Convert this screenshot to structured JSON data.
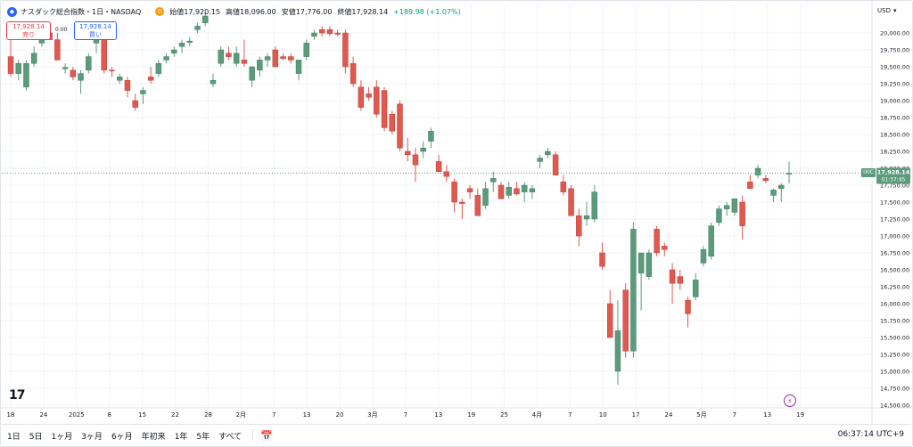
{
  "header": {
    "logo": "◆",
    "symbol": "ナスダック総合指数・1日・NASDAQ",
    "badge": "D",
    "open": "始値17,920.15",
    "high": "高値18,096.00",
    "low": "安値17,776.00",
    "close": "終値17,928.14",
    "change": "+189.98 (+1.07%)"
  },
  "trade": {
    "sell_price": "17,928.14",
    "sell_label": "売り",
    "spread": "0.00",
    "buy_price": "17,928.14",
    "buy_label": "買い"
  },
  "currency": "USD",
  "price_tag": {
    "label": "IXIC",
    "price": "17,928.14",
    "countdown": "01:37:45"
  },
  "toolbar": {
    "ranges": [
      "1日",
      "5日",
      "1ヶ月",
      "3ヶ月",
      "6ヶ月",
      "年初来",
      "1年",
      "5年",
      "すべて"
    ],
    "clock": "06:37:14 UTC+9"
  },
  "colors": {
    "up": "#5b9b7b",
    "down": "#e0594f",
    "grid": "#f0f3fa"
  },
  "chart_data": {
    "type": "candlestick",
    "y_ticks": [
      14500,
      14750,
      15000,
      15250,
      15500,
      15750,
      16000,
      16250,
      16500,
      16750,
      17000,
      17250,
      17500,
      17750,
      18000,
      18250,
      18500,
      18750,
      19000,
      19250,
      19500,
      19750,
      20000
    ],
    "y_tick_labels": [
      "14,500.00",
      "14,750.00",
      "15,000.00",
      "15,250.00",
      "15,500.00",
      "15,750.00",
      "16,000.00",
      "16,250.00",
      "16,500.00",
      "16,750.00",
      "17,000.00",
      "17,250.00",
      "17,500.00",
      "17,750.00",
      "18,000.00",
      "18,250.00",
      "18,500.00",
      "18,750.00",
      "19,000.00",
      "19,250.00",
      "19,500.00",
      "19,750.00",
      "20,000.00"
    ],
    "ylim": [
      14450,
      20250
    ],
    "x_labels": [
      "18",
      "24",
      "2025",
      "8",
      "15",
      "22",
      "28",
      "2月",
      "7",
      "13",
      "20",
      "3月",
      "7",
      "13",
      "19",
      "25",
      "4月",
      "7",
      "10",
      "17",
      "24",
      "5月",
      "7",
      "13",
      "19"
    ],
    "candles": [
      {
        "o": 19650,
        "h": 19950,
        "l": 19350,
        "c": 19400
      },
      {
        "o": 19400,
        "h": 19600,
        "l": 19300,
        "c": 19550
      },
      {
        "o": 19200,
        "h": 19600,
        "l": 19150,
        "c": 19550
      },
      {
        "o": 19550,
        "h": 19800,
        "l": 19500,
        "c": 19700
      },
      {
        "o": 19850,
        "h": 20000,
        "l": 19800,
        "c": 19950
      },
      {
        "o": 20000,
        "h": 20150,
        "l": 19900,
        "c": 19900
      },
      {
        "o": 19900,
        "h": 20000,
        "l": 19600,
        "c": 19600
      },
      {
        "o": 19470,
        "h": 19550,
        "l": 19400,
        "c": 19490
      },
      {
        "o": 19450,
        "h": 19500,
        "l": 19300,
        "c": 19350
      },
      {
        "o": 19300,
        "h": 19450,
        "l": 19100,
        "c": 19400
      },
      {
        "o": 19450,
        "h": 19700,
        "l": 19400,
        "c": 19650
      },
      {
        "o": 19850,
        "h": 20000,
        "l": 19700,
        "c": 19950
      },
      {
        "o": 19900,
        "h": 19950,
        "l": 19400,
        "c": 19450
      },
      {
        "o": 19450,
        "h": 19500,
        "l": 19350,
        "c": 19440
      },
      {
        "o": 19300,
        "h": 19400,
        "l": 19250,
        "c": 19350
      },
      {
        "o": 19300,
        "h": 19350,
        "l": 19050,
        "c": 19150
      },
      {
        "o": 19000,
        "h": 19100,
        "l": 18850,
        "c": 18900
      },
      {
        "o": 19100,
        "h": 19200,
        "l": 18950,
        "c": 19150
      },
      {
        "o": 19350,
        "h": 19500,
        "l": 19250,
        "c": 19300
      },
      {
        "o": 19400,
        "h": 19600,
        "l": 19350,
        "c": 19550
      },
      {
        "o": 19600,
        "h": 19700,
        "l": 19550,
        "c": 19650
      },
      {
        "o": 19700,
        "h": 19800,
        "l": 19650,
        "c": 19750
      },
      {
        "o": 19800,
        "h": 19900,
        "l": 19700,
        "c": 19850
      },
      {
        "o": 19860,
        "h": 19940,
        "l": 19800,
        "c": 19880
      },
      {
        "o": 20050,
        "h": 20150,
        "l": 20000,
        "c": 20100
      },
      {
        "o": 20150,
        "h": 20300,
        "l": 20100,
        "c": 20250
      },
      {
        "o": 19250,
        "h": 19400,
        "l": 19200,
        "c": 19300
      },
      {
        "o": 19550,
        "h": 19800,
        "l": 19500,
        "c": 19750
      },
      {
        "o": 19700,
        "h": 19800,
        "l": 19600,
        "c": 19650
      },
      {
        "o": 19550,
        "h": 19800,
        "l": 19500,
        "c": 19700
      },
      {
        "o": 19600,
        "h": 19900,
        "l": 19500,
        "c": 19550
      },
      {
        "o": 19300,
        "h": 19500,
        "l": 19200,
        "c": 19500
      },
      {
        "o": 19450,
        "h": 19650,
        "l": 19350,
        "c": 19600
      },
      {
        "o": 19600,
        "h": 19700,
        "l": 19500,
        "c": 19650
      },
      {
        "o": 19750,
        "h": 19800,
        "l": 19500,
        "c": 19500
      },
      {
        "o": 19650,
        "h": 19700,
        "l": 19600,
        "c": 19620
      },
      {
        "o": 19650,
        "h": 19700,
        "l": 19550,
        "c": 19600
      },
      {
        "o": 19400,
        "h": 19600,
        "l": 19300,
        "c": 19600
      },
      {
        "o": 19650,
        "h": 19900,
        "l": 19600,
        "c": 19850
      },
      {
        "o": 19950,
        "h": 20050,
        "l": 19900,
        "c": 20000
      },
      {
        "o": 20050,
        "h": 20100,
        "l": 19950,
        "c": 20000
      },
      {
        "o": 20050,
        "h": 20100,
        "l": 19950,
        "c": 19990
      },
      {
        "o": 20000,
        "h": 20050,
        "l": 19950,
        "c": 19980
      },
      {
        "o": 20000,
        "h": 20050,
        "l": 19400,
        "c": 19500
      },
      {
        "o": 19550,
        "h": 19650,
        "l": 19200,
        "c": 19250
      },
      {
        "o": 19200,
        "h": 19300,
        "l": 18850,
        "c": 18900
      },
      {
        "o": 19100,
        "h": 19200,
        "l": 19000,
        "c": 19050
      },
      {
        "o": 19200,
        "h": 19300,
        "l": 18750,
        "c": 18800
      },
      {
        "o": 19150,
        "h": 19200,
        "l": 18550,
        "c": 18600
      },
      {
        "o": 18800,
        "h": 18850,
        "l": 18500,
        "c": 18550
      },
      {
        "o": 18950,
        "h": 19000,
        "l": 18250,
        "c": 18300
      },
      {
        "o": 18250,
        "h": 18450,
        "l": 18100,
        "c": 18200
      },
      {
        "o": 18200,
        "h": 18300,
        "l": 17800,
        "c": 18050
      },
      {
        "o": 18250,
        "h": 18400,
        "l": 18150,
        "c": 18300
      },
      {
        "o": 18400,
        "h": 18600,
        "l": 18300,
        "c": 18550
      },
      {
        "o": 18100,
        "h": 18200,
        "l": 17950,
        "c": 17950
      },
      {
        "o": 17950,
        "h": 18050,
        "l": 17800,
        "c": 17880
      },
      {
        "o": 17800,
        "h": 17850,
        "l": 17350,
        "c": 17500
      },
      {
        "o": 17500,
        "h": 17550,
        "l": 17250,
        "c": 17480
      },
      {
        "o": 17700,
        "h": 17750,
        "l": 17550,
        "c": 17650
      },
      {
        "o": 17600,
        "h": 17700,
        "l": 17300,
        "c": 17300
      },
      {
        "o": 17450,
        "h": 17800,
        "l": 17400,
        "c": 17700
      },
      {
        "o": 17800,
        "h": 17950,
        "l": 17650,
        "c": 17850
      },
      {
        "o": 17750,
        "h": 17800,
        "l": 17550,
        "c": 17550
      },
      {
        "o": 17600,
        "h": 17800,
        "l": 17550,
        "c": 17720
      },
      {
        "o": 17700,
        "h": 17800,
        "l": 17600,
        "c": 17620
      },
      {
        "o": 17650,
        "h": 17800,
        "l": 17500,
        "c": 17750
      },
      {
        "o": 17650,
        "h": 17750,
        "l": 17550,
        "c": 17700
      },
      {
        "o": 18100,
        "h": 18200,
        "l": 18000,
        "c": 18150
      },
      {
        "o": 18200,
        "h": 18300,
        "l": 18150,
        "c": 18250
      },
      {
        "o": 18200,
        "h": 18250,
        "l": 17900,
        "c": 17900
      },
      {
        "o": 17800,
        "h": 17900,
        "l": 17600,
        "c": 17650
      },
      {
        "o": 17700,
        "h": 17750,
        "l": 17300,
        "c": 17300
      },
      {
        "o": 17300,
        "h": 17400,
        "l": 16850,
        "c": 17000
      },
      {
        "o": 17250,
        "h": 17500,
        "l": 17150,
        "c": 17300
      },
      {
        "o": 17250,
        "h": 17750,
        "l": 17200,
        "c": 17650
      },
      {
        "o": 16750,
        "h": 16900,
        "l": 16500,
        "c": 16550
      },
      {
        "o": 16000,
        "h": 16200,
        "l": 15500,
        "c": 15500
      },
      {
        "o": 15000,
        "h": 16050,
        "l": 14800,
        "c": 15600
      },
      {
        "o": 16200,
        "h": 16300,
        "l": 15200,
        "c": 15300
      },
      {
        "o": 15300,
        "h": 17200,
        "l": 15200,
        "c": 17100
      },
      {
        "o": 16450,
        "h": 16700,
        "l": 15900,
        "c": 16750
      },
      {
        "o": 16400,
        "h": 16800,
        "l": 16350,
        "c": 16750
      },
      {
        "o": 17100,
        "h": 17150,
        "l": 16700,
        "c": 16750
      },
      {
        "o": 16850,
        "h": 16900,
        "l": 16700,
        "c": 16800
      },
      {
        "o": 16500,
        "h": 16600,
        "l": 16000,
        "c": 16300
      },
      {
        "o": 16400,
        "h": 16500,
        "l": 16200,
        "c": 16300
      },
      {
        "o": 16050,
        "h": 16100,
        "l": 15650,
        "c": 15850
      },
      {
        "o": 16100,
        "h": 16450,
        "l": 16050,
        "c": 16350
      },
      {
        "o": 16600,
        "h": 16850,
        "l": 16550,
        "c": 16800
      },
      {
        "o": 16700,
        "h": 17200,
        "l": 16650,
        "c": 17150
      },
      {
        "o": 17200,
        "h": 17450,
        "l": 17150,
        "c": 17400
      },
      {
        "o": 17400,
        "h": 17500,
        "l": 17300,
        "c": 17450
      },
      {
        "o": 17350,
        "h": 17550,
        "l": 17300,
        "c": 17550
      },
      {
        "o": 17500,
        "h": 17600,
        "l": 16950,
        "c": 17150
      },
      {
        "o": 17800,
        "h": 17900,
        "l": 17700,
        "c": 17700
      },
      {
        "o": 17900,
        "h": 18050,
        "l": 17850,
        "c": 18000
      },
      {
        "o": 17850,
        "h": 17900,
        "l": 17780,
        "c": 17820
      },
      {
        "o": 17600,
        "h": 17700,
        "l": 17500,
        "c": 17680
      },
      {
        "o": 17700,
        "h": 17780,
        "l": 17500,
        "c": 17750
      },
      {
        "o": 17920,
        "h": 18096,
        "l": 17776,
        "c": 17928
      }
    ]
  }
}
